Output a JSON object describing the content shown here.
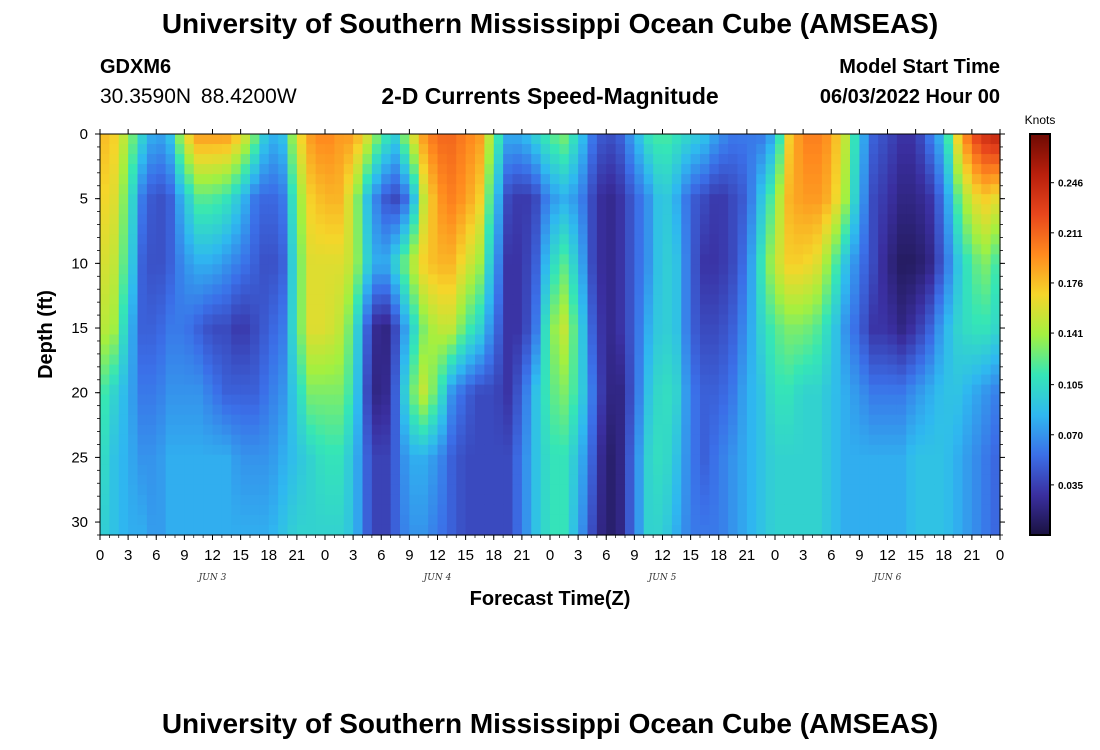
{
  "header": {
    "title": "University of Southern Mississippi Ocean Cube (AMSEAS)",
    "station_id": "GDXM6",
    "station_coords": "30.3590N  88.4200W",
    "chart_title": "2-D Currents Speed-Magnitude",
    "start_label": "Model Start Time",
    "start_value": "06/03/2022 Hour 00"
  },
  "footer": {
    "title": "University of Southern Mississippi Ocean Cube (AMSEAS)"
  },
  "chart_data": {
    "type": "heatmap",
    "title": "2-D Currents Speed-Magnitude",
    "xlabel": "Forecast Time(Z)",
    "ylabel": "Depth (ft)",
    "x_ticks": [
      "0",
      "3",
      "6",
      "9",
      "12",
      "15",
      "18",
      "21",
      "0",
      "3",
      "6",
      "9",
      "12",
      "15",
      "18",
      "21",
      "0",
      "3",
      "6",
      "9",
      "12",
      "15",
      "18",
      "21",
      "0",
      "3",
      "6",
      "9",
      "12",
      "15",
      "18",
      "21",
      "0"
    ],
    "x_day_labels": [
      "JUN 3",
      "JUN 4",
      "JUN 5",
      "JUN 6"
    ],
    "xlim_hours": [
      0,
      96
    ],
    "y_ticks": [
      0,
      5,
      10,
      15,
      20,
      25,
      30
    ],
    "ylim": [
      0,
      31
    ],
    "y_inverted": true,
    "colorbar": {
      "unit": "Knots",
      "ticks": [
        "0.035",
        "0.070",
        "0.105",
        "0.141",
        "0.176",
        "0.211",
        "0.246"
      ],
      "min": 0,
      "max": 0.28,
      "colors": [
        "#1a1240",
        "#3a2fa0",
        "#3b6fe8",
        "#2fb8f0",
        "#35e6b6",
        "#a3f040",
        "#f5d52a",
        "#ff8a1e",
        "#e8461c",
        "#b81f0c",
        "#6e0a03"
      ]
    },
    "field_note_values_knots": {
      "columns_hours": [
        0,
        1.5,
        3,
        4.5,
        6,
        7.5,
        9,
        10.5,
        12,
        13.5,
        15,
        16.5,
        18,
        19.5,
        21,
        22.5,
        24,
        25.5,
        27,
        28.5,
        30,
        31.5,
        33,
        34.5,
        36,
        37.5,
        39,
        40.5,
        42,
        43.5,
        45,
        46.5,
        48,
        49.5,
        51,
        52.5,
        54,
        55.5,
        57,
        58.5,
        60,
        61.5,
        63,
        64.5,
        66,
        67.5,
        69,
        70.5,
        72,
        73.5,
        75,
        76.5,
        78,
        79.5,
        81,
        82.5,
        84,
        85.5,
        87,
        88.5,
        90,
        91.5,
        93,
        94.5,
        96
      ],
      "rows_depth_ft": [
        0,
        5,
        10,
        15,
        20,
        25,
        31
      ],
      "values": [
        [
          0.18,
          0.17,
          0.14,
          0.1,
          0.07,
          0.09,
          0.16,
          0.19,
          0.19,
          0.19,
          0.17,
          0.13,
          0.08,
          0.09,
          0.16,
          0.19,
          0.2,
          0.19,
          0.19,
          0.16,
          0.12,
          0.1,
          0.15,
          0.19,
          0.21,
          0.21,
          0.2,
          0.19,
          0.13,
          0.08,
          0.08,
          0.1,
          0.12,
          0.13,
          0.1,
          0.06,
          0.04,
          0.05,
          0.08,
          0.11,
          0.12,
          0.11,
          0.1,
          0.09,
          0.07,
          0.06,
          0.06,
          0.06,
          0.08,
          0.17,
          0.2,
          0.2,
          0.19,
          0.15,
          0.09,
          0.05,
          0.04,
          0.03,
          0.03,
          0.06,
          0.09,
          0.17,
          0.22,
          0.24,
          0.25
        ],
        [
          0.17,
          0.16,
          0.12,
          0.06,
          0.04,
          0.05,
          0.09,
          0.12,
          0.12,
          0.11,
          0.09,
          0.06,
          0.05,
          0.06,
          0.13,
          0.17,
          0.18,
          0.18,
          0.15,
          0.09,
          0.05,
          0.04,
          0.06,
          0.15,
          0.19,
          0.2,
          0.19,
          0.17,
          0.1,
          0.04,
          0.03,
          0.04,
          0.07,
          0.08,
          0.07,
          0.04,
          0.02,
          0.03,
          0.05,
          0.07,
          0.1,
          0.08,
          0.05,
          0.04,
          0.03,
          0.04,
          0.05,
          0.09,
          0.13,
          0.18,
          0.19,
          0.19,
          0.18,
          0.14,
          0.08,
          0.04,
          0.03,
          0.02,
          0.02,
          0.03,
          0.06,
          0.12,
          0.16,
          0.17,
          0.16
        ],
        [
          0.16,
          0.15,
          0.11,
          0.05,
          0.04,
          0.05,
          0.07,
          0.08,
          0.08,
          0.07,
          0.06,
          0.05,
          0.04,
          0.05,
          0.12,
          0.16,
          0.16,
          0.16,
          0.15,
          0.1,
          0.07,
          0.1,
          0.14,
          0.17,
          0.18,
          0.18,
          0.16,
          0.14,
          0.08,
          0.03,
          0.03,
          0.05,
          0.1,
          0.12,
          0.09,
          0.04,
          0.02,
          0.03,
          0.05,
          0.07,
          0.1,
          0.09,
          0.05,
          0.03,
          0.03,
          0.04,
          0.06,
          0.11,
          0.15,
          0.17,
          0.17,
          0.16,
          0.13,
          0.09,
          0.06,
          0.04,
          0.02,
          0.01,
          0.01,
          0.02,
          0.05,
          0.09,
          0.12,
          0.13,
          0.11
        ],
        [
          0.15,
          0.14,
          0.09,
          0.05,
          0.05,
          0.06,
          0.06,
          0.05,
          0.04,
          0.04,
          0.03,
          0.04,
          0.05,
          0.06,
          0.12,
          0.16,
          0.16,
          0.15,
          0.12,
          0.05,
          0.01,
          0.04,
          0.09,
          0.13,
          0.15,
          0.15,
          0.12,
          0.1,
          0.06,
          0.03,
          0.03,
          0.06,
          0.13,
          0.15,
          0.11,
          0.05,
          0.02,
          0.03,
          0.05,
          0.08,
          0.1,
          0.09,
          0.05,
          0.04,
          0.04,
          0.05,
          0.07,
          0.1,
          0.12,
          0.13,
          0.13,
          0.12,
          0.1,
          0.07,
          0.05,
          0.03,
          0.03,
          0.02,
          0.03,
          0.05,
          0.08,
          0.1,
          0.11,
          0.11,
          0.1
        ],
        [
          0.12,
          0.1,
          0.08,
          0.06,
          0.06,
          0.07,
          0.07,
          0.07,
          0.06,
          0.05,
          0.05,
          0.05,
          0.06,
          0.07,
          0.1,
          0.13,
          0.13,
          0.13,
          0.11,
          0.04,
          0.01,
          0.05,
          0.12,
          0.15,
          0.12,
          0.07,
          0.05,
          0.04,
          0.04,
          0.03,
          0.05,
          0.09,
          0.12,
          0.13,
          0.11,
          0.06,
          0.02,
          0.02,
          0.05,
          0.09,
          0.11,
          0.1,
          0.06,
          0.05,
          0.05,
          0.06,
          0.08,
          0.09,
          0.11,
          0.11,
          0.1,
          0.1,
          0.09,
          0.08,
          0.07,
          0.06,
          0.06,
          0.06,
          0.07,
          0.08,
          0.09,
          0.09,
          0.08,
          0.07,
          0.06
        ],
        [
          0.11,
          0.09,
          0.08,
          0.07,
          0.07,
          0.08,
          0.08,
          0.08,
          0.08,
          0.08,
          0.07,
          0.07,
          0.07,
          0.08,
          0.09,
          0.1,
          0.11,
          0.11,
          0.09,
          0.05,
          0.03,
          0.05,
          0.08,
          0.08,
          0.07,
          0.05,
          0.04,
          0.04,
          0.04,
          0.04,
          0.06,
          0.09,
          0.11,
          0.11,
          0.09,
          0.05,
          0.01,
          0.02,
          0.06,
          0.1,
          0.11,
          0.09,
          0.06,
          0.05,
          0.06,
          0.07,
          0.08,
          0.09,
          0.1,
          0.1,
          0.1,
          0.1,
          0.09,
          0.08,
          0.08,
          0.08,
          0.08,
          0.08,
          0.09,
          0.09,
          0.09,
          0.08,
          0.07,
          0.06,
          0.05
        ],
        [
          0.1,
          0.09,
          0.08,
          0.08,
          0.07,
          0.08,
          0.08,
          0.08,
          0.08,
          0.08,
          0.08,
          0.08,
          0.08,
          0.09,
          0.1,
          0.1,
          0.1,
          0.1,
          0.09,
          0.05,
          0.03,
          0.05,
          0.07,
          0.07,
          0.06,
          0.05,
          0.04,
          0.04,
          0.04,
          0.04,
          0.06,
          0.09,
          0.11,
          0.11,
          0.08,
          0.04,
          0.01,
          0.02,
          0.06,
          0.1,
          0.1,
          0.08,
          0.06,
          0.06,
          0.06,
          0.07,
          0.08,
          0.09,
          0.1,
          0.1,
          0.1,
          0.1,
          0.09,
          0.08,
          0.08,
          0.08,
          0.08,
          0.08,
          0.09,
          0.09,
          0.09,
          0.08,
          0.07,
          0.06,
          0.05
        ]
      ]
    }
  }
}
